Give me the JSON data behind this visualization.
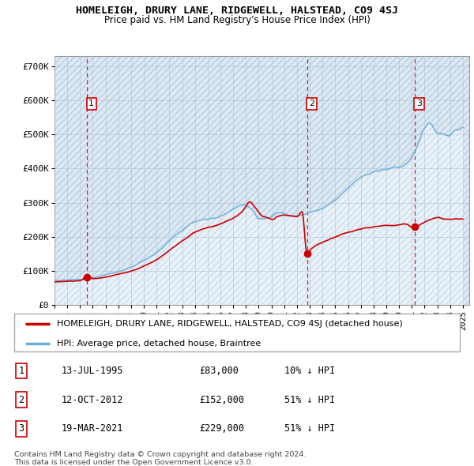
{
  "title": "HOMELEIGH, DRURY LANE, RIDGEWELL, HALSTEAD, CO9 4SJ",
  "subtitle": "Price paid vs. HM Land Registry's House Price Index (HPI)",
  "ylabel_ticks": [
    "£0",
    "£100K",
    "£200K",
    "£300K",
    "£400K",
    "£500K",
    "£600K",
    "£700K"
  ],
  "ytick_values": [
    0,
    100000,
    200000,
    300000,
    400000,
    500000,
    600000,
    700000
  ],
  "ylim": [
    0,
    730000
  ],
  "xlim_start": 1993.0,
  "xlim_end": 2025.5,
  "sale_dates": [
    1995.53,
    2012.78,
    2021.21
  ],
  "sale_prices": [
    83000,
    152000,
    229000
  ],
  "sale_labels": [
    "1",
    "2",
    "3"
  ],
  "legend_entries": [
    "HOMELEIGH, DRURY LANE, RIDGEWELL, HALSTEAD, CO9 4SJ (detached house)",
    "HPI: Average price, detached house, Braintree"
  ],
  "table_rows": [
    [
      "1",
      "13-JUL-1995",
      "£83,000",
      "10% ↓ HPI"
    ],
    [
      "2",
      "12-OCT-2012",
      "£152,000",
      "51% ↓ HPI"
    ],
    [
      "3",
      "19-MAR-2021",
      "£229,000",
      "51% ↓ HPI"
    ]
  ],
  "footnote1": "Contains HM Land Registry data © Crown copyright and database right 2024.",
  "footnote2": "This data is licensed under the Open Government Licence v3.0.",
  "hpi_color": "#6baed6",
  "hpi_fill_color": "#d4e8f7",
  "sale_line_color": "#cc0000",
  "sale_dot_color": "#cc0000",
  "vline_color": "#cc0000",
  "background_color": "#ffffff",
  "chart_bg_color": "#dce9f5",
  "grid_color": "#b0c4d8",
  "hatch_bg_color": "#c8d8e8"
}
